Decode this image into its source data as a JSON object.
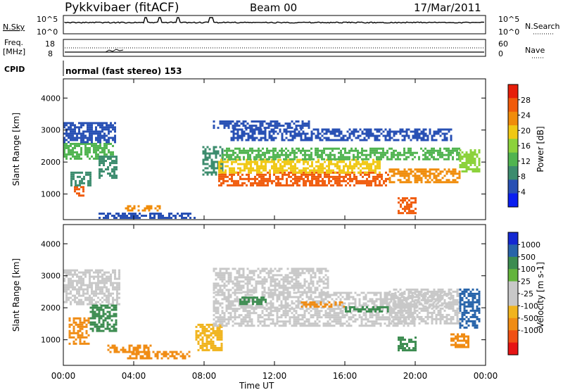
{
  "header": {
    "title": "Pykkvibaer (fitACF)",
    "beam": "Beam 00",
    "date": "17/Mar/2011"
  },
  "strip_labels": {
    "nsky": "N.Sky",
    "nsky_hi": "10^5",
    "nsky_lo": "10^0",
    "nsearch": "N.Search",
    "nsearch_hi": "10^5",
    "nsearch_lo": "10^0",
    "freq_top": "Freq.",
    "freq_unit": "[MHz]",
    "freq_hi": "18",
    "freq_lo": "8",
    "nave_hi": "60",
    "nave_lo": "0",
    "nave": "Nave",
    "cpid": "CPID",
    "cpid_value": "normal (fast stereo) 153"
  },
  "x_axis": {
    "label": "Time UT",
    "ticks": [
      "00:00",
      "04:00",
      "08:00",
      "12:00",
      "16:00",
      "20:00",
      "00:00"
    ]
  },
  "colors": {
    "power_scale": [
      "#0a1ef0",
      "#2850b4",
      "#3c8c6e",
      "#50b450",
      "#8cd23c",
      "#f0c814",
      "#f08c0a",
      "#f05a0a",
      "#e61e0a"
    ],
    "velocity_scale": [
      "#1428d2",
      "#2864aa",
      "#3c8c50",
      "#64b43c",
      "#c8c8c8",
      "#c8c8c8",
      "#f0b41e",
      "#f08c14",
      "#f05014",
      "#e61414"
    ]
  },
  "chart_data": [
    {
      "type": "heatmap",
      "panel": "power",
      "ylabel": "Slant Range [km]",
      "y_ticks": [
        "1000",
        "2000",
        "3000",
        "4000"
      ],
      "ylim": [
        200,
        4600
      ],
      "x_unit": "hours UT",
      "xlim": [
        0,
        24
      ],
      "colorbar_label": "Power [dB]",
      "colorbar_ticks": [
        "4",
        "8",
        "12",
        "16",
        "20",
        "24",
        "28"
      ],
      "colorbar_range": [
        0,
        32
      ],
      "regions": [
        {
          "x": [
            0.0,
            2.8
          ],
          "y": [
            2100,
            2600
          ],
          "value": 14
        },
        {
          "x": [
            0.0,
            3.0
          ],
          "y": [
            2600,
            3250
          ],
          "value": 6
        },
        {
          "x": [
            0.6,
            1.2
          ],
          "y": [
            950,
            1250
          ],
          "value": 28
        },
        {
          "x": [
            0.4,
            1.6
          ],
          "y": [
            1250,
            1700
          ],
          "value": 10
        },
        {
          "x": [
            2.0,
            3.0
          ],
          "y": [
            1500,
            2200
          ],
          "value": 8
        },
        {
          "x": [
            3.5,
            5.5
          ],
          "y": [
            500,
            650
          ],
          "value": 24
        },
        {
          "x": [
            2.0,
            7.5
          ],
          "y": [
            280,
            420
          ],
          "value": 5
        },
        {
          "x": [
            7.9,
            9.0
          ],
          "y": [
            1600,
            2500
          ],
          "value": 10
        },
        {
          "x": [
            8.8,
            18.5
          ],
          "y": [
            1300,
            1700
          ],
          "value": 26
        },
        {
          "x": [
            8.8,
            18.0
          ],
          "y": [
            1700,
            2100
          ],
          "value": 18
        },
        {
          "x": [
            9.0,
            22.5
          ],
          "y": [
            2100,
            2450
          ],
          "value": 13
        },
        {
          "x": [
            9.5,
            22.0
          ],
          "y": [
            2700,
            3050
          ],
          "value": 7
        },
        {
          "x": [
            8.5,
            14.0
          ],
          "y": [
            3050,
            3300
          ],
          "value": 5
        },
        {
          "x": [
            18.5,
            22.5
          ],
          "y": [
            1400,
            1800
          ],
          "value": 22
        },
        {
          "x": [
            19.0,
            20.0
          ],
          "y": [
            400,
            900
          ],
          "value": 28
        },
        {
          "x": [
            22.5,
            23.6
          ],
          "y": [
            1700,
            2400
          ],
          "value": 15
        }
      ]
    },
    {
      "type": "heatmap",
      "panel": "velocity",
      "ylabel": "Slant Range [km]",
      "y_ticks": [
        "1000",
        "2000",
        "3000",
        "4000"
      ],
      "ylim": [
        200,
        4600
      ],
      "x_unit": "hours UT",
      "xlim": [
        0,
        24
      ],
      "colorbar_label": "Velocity [m s-1]",
      "colorbar_ticks": [
        "1000",
        "500",
        "100",
        "25",
        "-25",
        "-100",
        "-500",
        "-1000"
      ],
      "regions": [
        {
          "x": [
            0.0,
            3.2
          ],
          "y": [
            2100,
            3200
          ],
          "value": 0
        },
        {
          "x": [
            0.3,
            1.5
          ],
          "y": [
            900,
            1700
          ],
          "value": -300
        },
        {
          "x": [
            1.5,
            3.0
          ],
          "y": [
            1300,
            2100
          ],
          "value": 300
        },
        {
          "x": [
            2.5,
            5.0
          ],
          "y": [
            650,
            850
          ],
          "value": -200
        },
        {
          "x": [
            3.5,
            7.2
          ],
          "y": [
            450,
            650
          ],
          "value": -150
        },
        {
          "x": [
            7.5,
            9.0
          ],
          "y": [
            700,
            1500
          ],
          "value": -100
        },
        {
          "x": [
            8.5,
            20.0
          ],
          "y": [
            1450,
            2000
          ],
          "value": 0
        },
        {
          "x": [
            8.5,
            22.0
          ],
          "y": [
            2000,
            2500
          ],
          "value": 0
        },
        {
          "x": [
            8.5,
            15.0
          ],
          "y": [
            2500,
            3250
          ],
          "value": 0
        },
        {
          "x": [
            10.0,
            11.5
          ],
          "y": [
            2150,
            2350
          ],
          "value": 250
        },
        {
          "x": [
            13.5,
            16.0
          ],
          "y": [
            2050,
            2200
          ],
          "value": -300
        },
        {
          "x": [
            16.0,
            18.5
          ],
          "y": [
            1900,
            2050
          ],
          "value": 200
        },
        {
          "x": [
            18.5,
            22.5
          ],
          "y": [
            1500,
            2600
          ],
          "value": 0
        },
        {
          "x": [
            19.0,
            20.0
          ],
          "y": [
            700,
            1100
          ],
          "value": 300
        },
        {
          "x": [
            22.5,
            23.6
          ],
          "y": [
            1400,
            2600
          ],
          "value": 600
        },
        {
          "x": [
            22.0,
            23.0
          ],
          "y": [
            800,
            1200
          ],
          "value": -400
        }
      ]
    }
  ]
}
